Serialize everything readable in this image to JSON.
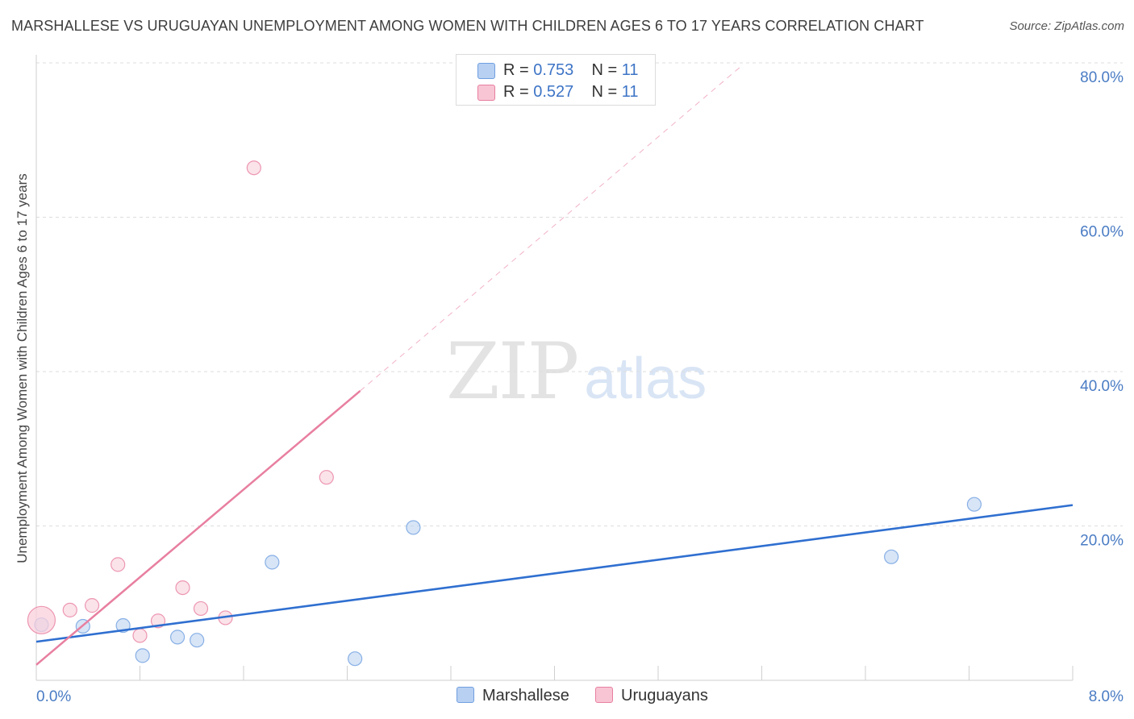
{
  "chart_data": {
    "type": "scatter",
    "title": "MARSHALLESE VS URUGUAYAN UNEMPLOYMENT AMONG WOMEN WITH CHILDREN AGES 6 TO 17 YEARS CORRELATION CHART",
    "source": "Source: ZipAtlas.com",
    "ylabel": "Unemployment Among Women with Children Ages 6 to 17 years",
    "xlim": [
      0,
      8
    ],
    "ylim": [
      0,
      80
    ],
    "x_tick_labels": [
      "0.0%",
      "8.0%"
    ],
    "y_ticks": [
      20,
      40,
      60,
      80
    ],
    "y_tick_labels": [
      "20.0%",
      "40.0%",
      "60.0%",
      "80.0%"
    ],
    "grid": true,
    "legend_top": [
      {
        "swatch_color": "#b8d0f2",
        "r_label": "R = ",
        "r_value": "0.753",
        "n_label": "N = ",
        "n_value": "11"
      },
      {
        "swatch_color": "#f8c5d4",
        "r_label": "R = ",
        "r_value": "0.527",
        "n_label": "N = ",
        "n_value": "11"
      }
    ],
    "series": [
      {
        "name": "Marshallese",
        "color": "#6f9fe0",
        "fill": "#bcd3f2",
        "points": [
          {
            "x": 0.04,
            "y": 7.2
          },
          {
            "x": 0.36,
            "y": 7.0
          },
          {
            "x": 0.67,
            "y": 7.1
          },
          {
            "x": 0.82,
            "y": 3.2
          },
          {
            "x": 1.09,
            "y": 5.6
          },
          {
            "x": 1.24,
            "y": 5.2
          },
          {
            "x": 1.82,
            "y": 15.3
          },
          {
            "x": 2.46,
            "y": 2.8
          },
          {
            "x": 2.91,
            "y": 19.8
          },
          {
            "x": 6.6,
            "y": 16.0
          },
          {
            "x": 7.24,
            "y": 22.8
          }
        ],
        "trend": {
          "x0": 0.0,
          "y0": 5.0,
          "x1": 8.0,
          "y1": 22.7,
          "style": "solid"
        }
      },
      {
        "name": "Uruguayans",
        "color": "#e87fa0",
        "fill": "#f9d0dc",
        "points": [
          {
            "x": 0.04,
            "y": 7.8,
            "big": true
          },
          {
            "x": 0.26,
            "y": 9.1
          },
          {
            "x": 0.43,
            "y": 9.7
          },
          {
            "x": 0.63,
            "y": 15.0
          },
          {
            "x": 0.8,
            "y": 5.8
          },
          {
            "x": 0.94,
            "y": 7.7
          },
          {
            "x": 1.13,
            "y": 12.0
          },
          {
            "x": 1.27,
            "y": 9.3
          },
          {
            "x": 1.46,
            "y": 8.1
          },
          {
            "x": 1.68,
            "y": 66.4
          },
          {
            "x": 2.24,
            "y": 26.3
          }
        ],
        "trend": {
          "x0": 0.0,
          "y0": 2.0,
          "x1": 2.5,
          "y1": 37.5,
          "style": "solid"
        },
        "trend_ext": {
          "x0": 2.5,
          "y0": 37.5,
          "x1": 5.45,
          "y1": 79.7,
          "style": "dashed"
        }
      }
    ]
  }
}
